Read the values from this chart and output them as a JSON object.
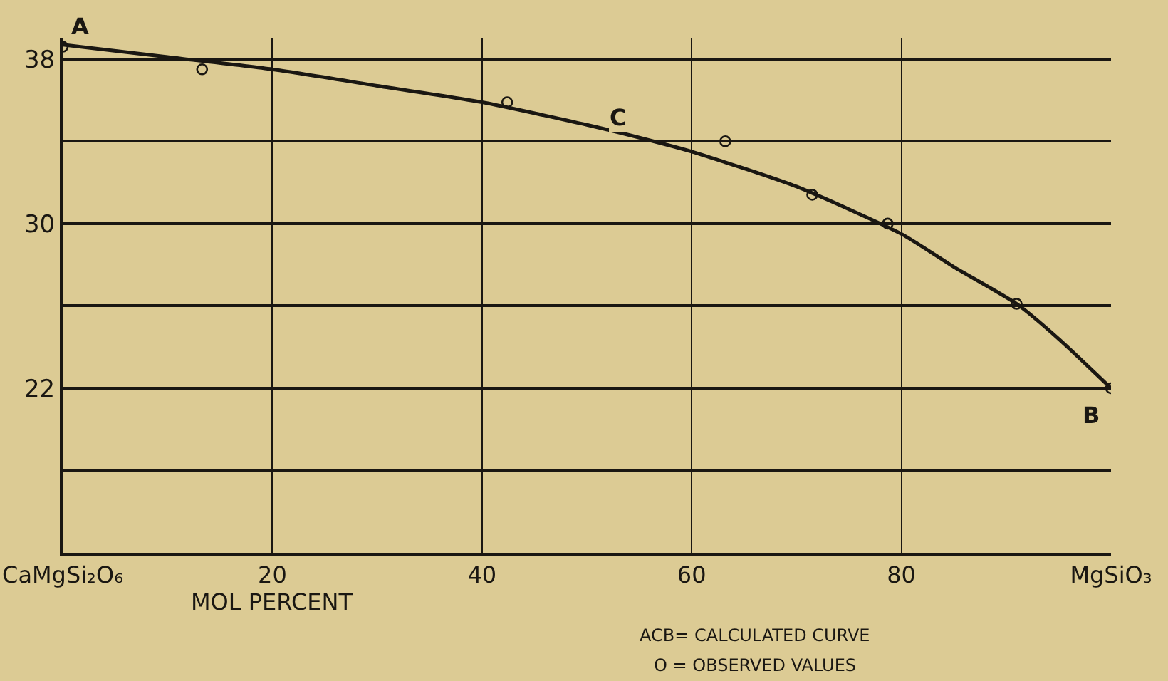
{
  "chart_data": {
    "type": "line",
    "xlabel": "MOL PERCENT",
    "xlim": [
      0,
      100
    ],
    "ylim": [
      14,
      39
    ],
    "xticks": [
      {
        "value": 0,
        "label": "CaMgSi₂O₆"
      },
      20,
      40,
      60,
      80,
      {
        "value": 100,
        "label": "MgSiO₃"
      }
    ],
    "yticks": [
      {
        "value": 14,
        "label": null
      },
      {
        "value": 18,
        "label": null
      },
      22,
      {
        "value": 26,
        "label": null
      },
      30,
      {
        "value": 34,
        "label": null
      },
      38
    ],
    "grid": true,
    "series": [
      {
        "color": "#1a1712",
        "line_style": "solid",
        "marker": "none",
        "x": [
          0,
          10,
          20,
          30,
          40,
          50,
          56,
          60,
          70,
          80,
          85,
          91,
          95,
          100
        ],
        "values": [
          38.7,
          38.1,
          37.5,
          36.7,
          35.9,
          34.8,
          34.05,
          33.5,
          31.8,
          29.5,
          27.9,
          26.1,
          24.4,
          22.0
        ]
      },
      {
        "type": "scatter",
        "color": "#1a1712",
        "marker": "circle",
        "x": [
          0,
          13.3,
          42.4,
          63.2,
          71.5,
          78.7,
          91.0,
          100
        ],
        "values": [
          38.6,
          37.5,
          35.9,
          34.0,
          31.4,
          30.0,
          26.1,
          22.0
        ]
      }
    ],
    "annotations": [
      {
        "text": "A",
        "x": 0,
        "y": 38.7
      },
      {
        "text": "C",
        "x": 56,
        "y": 34.05
      },
      {
        "text": "B",
        "x": 100,
        "y": 22.0
      },
      "ACB= CALCULATED CURVE",
      "O = OBSERVED VALUES"
    ]
  }
}
